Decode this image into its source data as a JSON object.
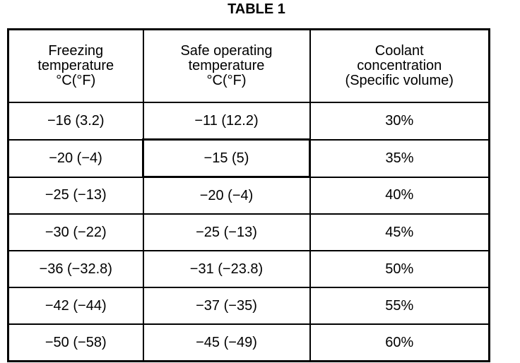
{
  "title": "TABLE 1",
  "table": {
    "header": [
      [
        "Freezing",
        "temperature",
        "°C(°F)"
      ],
      [
        "Safe operating",
        "temperature",
        "°C(°F)"
      ],
      [
        "Coolant",
        "concentration",
        "(Specific volume)"
      ]
    ],
    "rows": [
      [
        "−16 (3.2)",
        "−11 (12.2)",
        "30%"
      ],
      [
        "−20 (−4)",
        "−15 (5)",
        "35%"
      ],
      [
        "−25 (−13)",
        "−20 (−4)",
        "40%"
      ],
      [
        "−30 (−22)",
        "−25 (−13)",
        "45%"
      ],
      [
        "−36 (−32.8)",
        "−31 (−23.8)",
        "50%"
      ],
      [
        "−42 (−44)",
        "−37 (−35)",
        "55%"
      ],
      [
        "−50 (−58)",
        "−45 (−49)",
        "60%"
      ]
    ]
  }
}
